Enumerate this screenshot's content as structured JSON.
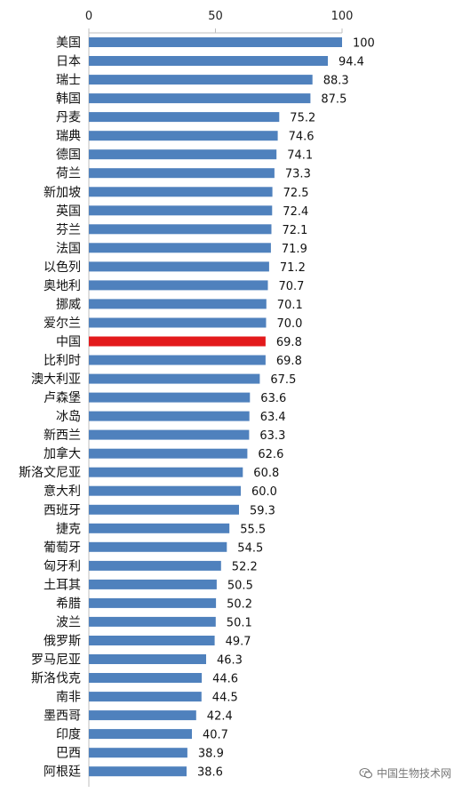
{
  "chart_data": {
    "type": "bar",
    "orientation": "horizontal",
    "title": "",
    "xlabel": "",
    "ylabel": "",
    "xlim": [
      0,
      100
    ],
    "xticks": [
      0,
      50,
      100
    ],
    "xtick_labels": [
      "0",
      "50",
      "100"
    ],
    "grid": false,
    "bar_color": "#4F81BD",
    "highlight_color": "#E31A1C",
    "highlight_category": "中国",
    "categories": [
      "美国",
      "日本",
      "瑞士",
      "韩国",
      "丹麦",
      "瑞典",
      "德国",
      "荷兰",
      "新加坡",
      "英国",
      "芬兰",
      "法国",
      "以色列",
      "奥地利",
      "挪威",
      "爱尔兰",
      "中国",
      "比利时",
      "澳大利亚",
      "卢森堡",
      "冰岛",
      "新西兰",
      "加拿大",
      "斯洛文尼亚",
      "意大利",
      "西班牙",
      "捷克",
      "葡萄牙",
      "匈牙利",
      "土耳其",
      "希腊",
      "波兰",
      "俄罗斯",
      "罗马尼亚",
      "斯洛伐克",
      "南非",
      "墨西哥",
      "印度",
      "巴西",
      "阿根廷"
    ],
    "values": [
      100,
      94.4,
      88.3,
      87.5,
      75.2,
      74.6,
      74.1,
      73.3,
      72.5,
      72.4,
      72.1,
      71.9,
      71.2,
      70.7,
      70.1,
      70.0,
      69.8,
      69.8,
      67.5,
      63.6,
      63.4,
      63.3,
      62.6,
      60.8,
      60.0,
      59.3,
      55.5,
      54.5,
      52.2,
      50.5,
      50.2,
      50.1,
      49.7,
      46.3,
      44.6,
      44.5,
      42.4,
      40.7,
      38.9,
      38.6
    ],
    "value_labels": [
      "100",
      "94.4",
      "88.3",
      "87.5",
      "75.2",
      "74.6",
      "74.1",
      "73.3",
      "72.5",
      "72.4",
      "72.1",
      "71.9",
      "71.2",
      "70.7",
      "70.1",
      "70.0",
      "69.8",
      "69.8",
      "67.5",
      "63.6",
      "63.4",
      "63.3",
      "62.6",
      "60.8",
      "60.0",
      "59.3",
      "55.5",
      "54.5",
      "52.2",
      "50.5",
      "50.2",
      "50.1",
      "49.7",
      "46.3",
      "44.6",
      "44.5",
      "42.4",
      "40.7",
      "38.9",
      "38.6"
    ]
  },
  "watermark": {
    "text": "中国生物技术网",
    "icon": "wechat-icon"
  }
}
